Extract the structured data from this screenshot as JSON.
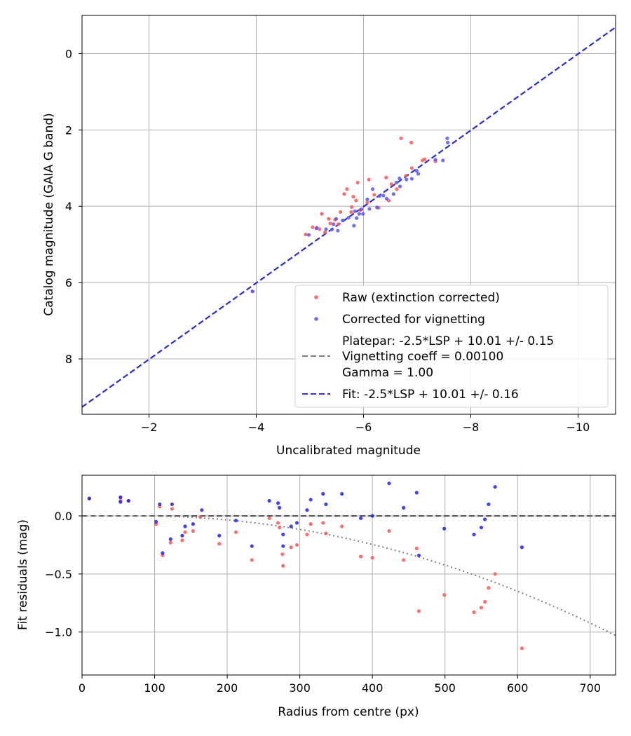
{
  "chart_data": [
    {
      "type": "scatter",
      "xlabel": "Uncalibrated magnitude",
      "ylabel": "Catalog magnitude (GAIA G band)",
      "xlim": [
        -0.75,
        -10.7
      ],
      "ylim": [
        9.45,
        -1.0
      ],
      "xticks": [
        -2,
        -4,
        -6,
        -8,
        -10
      ],
      "yticks": [
        0,
        2,
        4,
        6,
        8
      ],
      "xticklabels": [
        "−2",
        "−4",
        "−6",
        "−8",
        "−10"
      ],
      "yticklabels": [
        "0",
        "2",
        "4",
        "6",
        "8"
      ],
      "grid": true,
      "legend_position": "lower-right",
      "legend": [
        {
          "label": "Raw (extinction corrected)",
          "kind": "marker",
          "color": "#ff5555"
        },
        {
          "label": "Corrected for vignetting",
          "kind": "marker",
          "color": "#5555ff"
        },
        {
          "label": "Platepar: -2.5*LSP + 10.01 +/- 0.15",
          "kind": "text"
        },
        {
          "label": "Vignetting coeff = 0.00100",
          "kind": "dash",
          "color": "#808080"
        },
        {
          "label": "Gamma = 1.00",
          "kind": "text"
        },
        {
          "label": "Fit: -2.5*LSP + 10.01 +/- 0.16",
          "kind": "dash",
          "color": "#3333dd"
        }
      ],
      "lines": [
        {
          "name": "Platepar",
          "slope": 1.0,
          "intercept": 10.01,
          "color": "#808080",
          "style": "dashed"
        },
        {
          "name": "Fit",
          "slope": 1.0,
          "intercept": 10.01,
          "color": "#2222dd",
          "style": "dashed"
        }
      ],
      "series": [
        {
          "name": "Raw (extinction corrected)",
          "color": "#ff5555",
          "points": [
            [
              -3.93,
              6.23
            ],
            [
              -4.92,
              4.74
            ],
            [
              -5.05,
              4.55
            ],
            [
              -5.13,
              4.56
            ],
            [
              -5.18,
              4.6
            ],
            [
              -5.22,
              4.2
            ],
            [
              -5.28,
              4.68
            ],
            [
              -5.35,
              4.33
            ],
            [
              -5.38,
              4.45
            ],
            [
              -5.47,
              4.35
            ],
            [
              -5.53,
              4.47
            ],
            [
              -5.57,
              4.15
            ],
            [
              -5.64,
              3.68
            ],
            [
              -5.69,
              3.55
            ],
            [
              -5.77,
              4.15
            ],
            [
              -5.78,
              4.02
            ],
            [
              -5.81,
              3.75
            ],
            [
              -5.86,
              3.85
            ],
            [
              -5.89,
              3.38
            ],
            [
              -5.94,
              4.1
            ],
            [
              -6.07,
              3.9
            ],
            [
              -6.1,
              3.3
            ],
            [
              -6.2,
              3.7
            ],
            [
              -6.28,
              4.04
            ],
            [
              -6.42,
              3.25
            ],
            [
              -6.47,
              3.85
            ],
            [
              -6.52,
              3.42
            ],
            [
              -6.62,
              3.55
            ],
            [
              -6.7,
              2.22
            ],
            [
              -6.79,
              3.2
            ],
            [
              -6.89,
              2.33
            ],
            [
              -6.9,
              3.0
            ],
            [
              -7.1,
              2.8
            ],
            [
              -7.14,
              2.77
            ],
            [
              -7.34,
              2.82
            ]
          ]
        },
        {
          "name": "Corrected for vignetting",
          "color": "#5555ff",
          "points": [
            [
              -3.93,
              6.23
            ],
            [
              -4.98,
              4.75
            ],
            [
              -5.12,
              4.58
            ],
            [
              -5.3,
              4.6
            ],
            [
              -5.41,
              4.61
            ],
            [
              -5.44,
              4.47
            ],
            [
              -5.49,
              4.33
            ],
            [
              -5.52,
              4.64
            ],
            [
              -5.61,
              4.37
            ],
            [
              -5.72,
              4.3
            ],
            [
              -5.82,
              4.51
            ],
            [
              -5.84,
              4.13
            ],
            [
              -5.87,
              4.31
            ],
            [
              -5.92,
              4.2
            ],
            [
              -5.96,
              4.08
            ],
            [
              -5.99,
              4.2
            ],
            [
              -6.07,
              3.82
            ],
            [
              -6.11,
              4.07
            ],
            [
              -6.17,
              3.55
            ],
            [
              -6.25,
              4.03
            ],
            [
              -6.3,
              3.73
            ],
            [
              -6.37,
              3.72
            ],
            [
              -6.43,
              3.8
            ],
            [
              -6.56,
              3.68
            ],
            [
              -6.61,
              3.38
            ],
            [
              -6.67,
              3.27
            ],
            [
              -6.68,
              3.48
            ],
            [
              -6.8,
              3.3
            ],
            [
              -6.9,
              3.28
            ],
            [
              -6.99,
              3.07
            ],
            [
              -7.02,
              3.15
            ],
            [
              -7.34,
              2.78
            ],
            [
              -7.48,
              2.8
            ],
            [
              -7.56,
              2.22
            ],
            [
              -7.57,
              2.33
            ]
          ]
        }
      ]
    },
    {
      "type": "scatter",
      "xlabel": "Radius from centre (px)",
      "ylabel": "Fit residuals (mag)",
      "xlim": [
        0,
        735
      ],
      "ylim": [
        -1.37,
        0.35
      ],
      "xticks": [
        0,
        100,
        200,
        300,
        400,
        500,
        600,
        700
      ],
      "yticks": [
        0.0,
        -0.5,
        -1.0
      ],
      "xticklabels": [
        "0",
        "100",
        "200",
        "300",
        "400",
        "500",
        "600",
        "700"
      ],
      "yticklabels": [
        "0.0",
        "−0.5",
        "−1.0"
      ],
      "grid": true,
      "reference_lines": [
        {
          "name": "zero",
          "y": 0.0,
          "color": "#555555",
          "style": "dashed"
        },
        {
          "name": "vignetting model",
          "coeff": 0.001,
          "color": "#808080",
          "style": "dotted"
        }
      ],
      "series": [
        {
          "name": "Raw (extinction corrected)",
          "color": "#ff5555",
          "points": [
            [
              10,
              0.15
            ],
            [
              53,
              0.16
            ],
            [
              53,
              0.13
            ],
            [
              64,
              0.13
            ],
            [
              102,
              -0.07
            ],
            [
              107,
              0.08
            ],
            [
              111,
              -0.34
            ],
            [
              122,
              -0.23
            ],
            [
              124,
              0.06
            ],
            [
              138,
              -0.21
            ],
            [
              142,
              -0.14
            ],
            [
              153,
              -0.13
            ],
            [
              163,
              -0.01
            ],
            [
              189,
              -0.24
            ],
            [
              212,
              -0.14
            ],
            [
              234,
              -0.38
            ],
            [
              258,
              -0.02
            ],
            [
              270,
              -0.06
            ],
            [
              272,
              -0.1
            ],
            [
              276,
              -0.33
            ],
            [
              277,
              -0.43
            ],
            [
              288,
              -0.27
            ],
            [
              296,
              -0.25
            ],
            [
              310,
              -0.16
            ],
            [
              315,
              -0.07
            ],
            [
              332,
              -0.06
            ],
            [
              336,
              -0.15
            ],
            [
              358,
              -0.09
            ],
            [
              384,
              -0.35
            ],
            [
              400,
              -0.36
            ],
            [
              423,
              -0.13
            ],
            [
              443,
              -0.38
            ],
            [
              461,
              -0.28
            ],
            [
              464,
              -0.82
            ],
            [
              499,
              -0.68
            ],
            [
              540,
              -0.83
            ],
            [
              550,
              -0.79
            ],
            [
              555,
              -0.74
            ],
            [
              560,
              -0.62
            ],
            [
              569,
              -0.5
            ],
            [
              606,
              -1.14
            ]
          ]
        },
        {
          "name": "Corrected for vignetting",
          "color": "#2222ee",
          "points": [
            [
              10,
              0.15
            ],
            [
              53,
              0.16
            ],
            [
              53,
              0.12
            ],
            [
              64,
              0.13
            ],
            [
              102,
              -0.05
            ],
            [
              107,
              0.1
            ],
            [
              111,
              -0.32
            ],
            [
              122,
              -0.2
            ],
            [
              124,
              0.1
            ],
            [
              138,
              -0.17
            ],
            [
              142,
              -0.09
            ],
            [
              153,
              -0.07
            ],
            [
              165,
              0.05
            ],
            [
              189,
              -0.17
            ],
            [
              212,
              -0.04
            ],
            [
              234,
              -0.26
            ],
            [
              258,
              0.13
            ],
            [
              270,
              0.11
            ],
            [
              272,
              0.07
            ],
            [
              277,
              -0.16
            ],
            [
              277,
              -0.26
            ],
            [
              288,
              -0.09
            ],
            [
              296,
              -0.06
            ],
            [
              310,
              0.05
            ],
            [
              315,
              0.14
            ],
            [
              332,
              0.19
            ],
            [
              336,
              0.1
            ],
            [
              358,
              0.19
            ],
            [
              384,
              -0.02
            ],
            [
              400,
              0.0
            ],
            [
              423,
              0.28
            ],
            [
              443,
              0.07
            ],
            [
              461,
              0.2
            ],
            [
              464,
              -0.34
            ],
            [
              499,
              -0.11
            ],
            [
              540,
              -0.16
            ],
            [
              550,
              -0.1
            ],
            [
              555,
              -0.03
            ],
            [
              560,
              0.1
            ],
            [
              569,
              0.25
            ],
            [
              606,
              -0.27
            ]
          ]
        }
      ]
    }
  ]
}
